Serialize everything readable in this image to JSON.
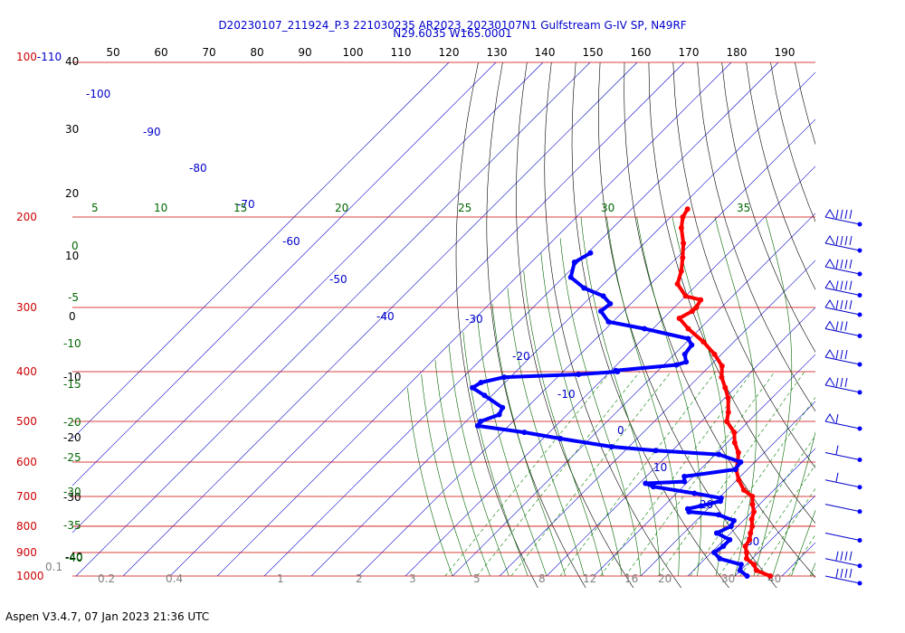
{
  "title_line1": "D20230107_211924_P.3 221030235 AR2023_20230107N1 Gulfstream G-IV SP, N49RF",
  "title_line2": "N29.6035 W165.0001",
  "footer": "Aspen V3.4.7, 07 Jan 2023  21:36 UTC",
  "colors": {
    "temperature": "#ff0000",
    "dewpoint": "#0000ff",
    "isobar": "#cc0000",
    "isotherm": "#0000cc",
    "dry_adiabat": "#000000",
    "moist_adiabat": "#006600",
    "mixing_ratio": "#008000",
    "height_tick": "#000000"
  },
  "chart_data": {
    "type": "line",
    "diagram": "skew-T log-p",
    "title": "D20230107_211924_P.3 221030235 AR2023_20230107N1 Gulfstream G-IV SP, N49RF",
    "subtitle": "N29.6035 W165.0001",
    "ylim_hPa": [
      1000,
      100
    ],
    "pressure_labels": [
      "100-110",
      "200",
      "300",
      "400",
      "500",
      "600",
      "700",
      "800",
      "900",
      "1000"
    ],
    "isobars_hPa": [
      100,
      200,
      300,
      400,
      500,
      600,
      700,
      800,
      900,
      1000
    ],
    "top_tick_labels": [
      "50",
      "60",
      "70",
      "80",
      "90",
      "100",
      "110",
      "120",
      "130",
      "140",
      "150",
      "160",
      "170",
      "180",
      "190"
    ],
    "height_labels": [
      "40",
      "30",
      "20",
      "10",
      "0",
      "-10",
      "-20",
      "-30",
      "-40"
    ],
    "isotherm_labels_C": [
      "-100",
      "-90",
      "-80",
      "-70",
      "-60",
      "-50",
      "-40",
      "-30",
      "-20",
      "-10",
      "0",
      "10",
      "20",
      "30"
    ],
    "moist_adiabat_labels": [
      "5",
      "10",
      "15",
      "20",
      "25",
      "30",
      "35"
    ],
    "left_green_labels": [
      "0",
      "-5",
      "-10",
      "-15",
      "-20",
      "-25",
      "-30",
      "-35",
      "-40"
    ],
    "mixing_ratio_labels": [
      "0.1",
      "0.2",
      "0.4",
      "1",
      "2",
      "3",
      "5",
      "8",
      "12",
      "16",
      "20",
      "30",
      "40"
    ],
    "mixing_ratio_values_gkg": [
      0.1,
      0.2,
      0.4,
      1,
      2,
      3,
      5,
      8,
      12,
      16,
      20,
      30,
      40
    ],
    "series": [
      {
        "name": "temperature",
        "points": [
          {
            "p": 1000,
            "t": 27.5
          },
          {
            "p": 975,
            "t": 23.4
          },
          {
            "p": 950,
            "t": 21.6
          },
          {
            "p": 925,
            "t": 18.8
          },
          {
            "p": 900,
            "t": 17.5
          },
          {
            "p": 875,
            "t": 15.9
          },
          {
            "p": 850,
            "t": 15.4
          },
          {
            "p": 825,
            "t": 14.2
          },
          {
            "p": 800,
            "t": 13.1
          },
          {
            "p": 775,
            "t": 11.5
          },
          {
            "p": 750,
            "t": 10.4
          },
          {
            "p": 725,
            "t": 8.5
          },
          {
            "p": 700,
            "t": 6.8
          },
          {
            "p": 680,
            "t": 3.6
          },
          {
            "p": 650,
            "t": 0.4
          },
          {
            "p": 620,
            "t": -2.4
          },
          {
            "p": 600,
            "t": -3.6
          },
          {
            "p": 575,
            "t": -5.5
          },
          {
            "p": 550,
            "t": -8.4
          },
          {
            "p": 525,
            "t": -10.7
          },
          {
            "p": 500,
            "t": -14.6
          },
          {
            "p": 480,
            "t": -16.2
          },
          {
            "p": 450,
            "t": -19.3
          },
          {
            "p": 430,
            "t": -22.1
          },
          {
            "p": 410,
            "t": -25.1
          },
          {
            "p": 390,
            "t": -27.4
          },
          {
            "p": 370,
            "t": -31.5
          },
          {
            "p": 350,
            "t": -36.5
          },
          {
            "p": 330,
            "t": -42.5
          },
          {
            "p": 315,
            "t": -46.6
          },
          {
            "p": 305,
            "t": -45.4
          },
          {
            "p": 300,
            "t": -45.3
          },
          {
            "p": 290,
            "t": -46.0
          },
          {
            "p": 285,
            "t": -50.0
          },
          {
            "p": 270,
            "t": -54.3
          },
          {
            "p": 255,
            "t": -56.2
          },
          {
            "p": 240,
            "t": -58.8
          },
          {
            "p": 225,
            "t": -61.7
          },
          {
            "p": 210,
            "t": -65.4
          },
          {
            "p": 200,
            "t": -67.4
          },
          {
            "p": 193,
            "t": -68.1
          }
        ]
      },
      {
        "name": "dewpoint",
        "points": [
          {
            "p": 1000,
            "t": 22.6
          },
          {
            "p": 975,
            "t": 19.9
          },
          {
            "p": 950,
            "t": 18.9
          },
          {
            "p": 925,
            "t": 13.1
          },
          {
            "p": 900,
            "t": 10.6
          },
          {
            "p": 875,
            "t": 11.2
          },
          {
            "p": 850,
            "t": 11.2
          },
          {
            "p": 825,
            "t": 7.0
          },
          {
            "p": 800,
            "t": 8.6
          },
          {
            "p": 780,
            "t": 8.0
          },
          {
            "p": 760,
            "t": 3.5
          },
          {
            "p": 750,
            "t": -3.4
          },
          {
            "p": 740,
            "t": -4.3
          },
          {
            "p": 730,
            "t": -2.1
          },
          {
            "p": 715,
            "t": 1.0
          },
          {
            "p": 705,
            "t": 0.5
          },
          {
            "p": 690,
            "t": -6.2
          },
          {
            "p": 670,
            "t": -16.3
          },
          {
            "p": 660,
            "t": -18.7
          },
          {
            "p": 655,
            "t": -10.8
          },
          {
            "p": 640,
            "t": -11.9
          },
          {
            "p": 620,
            "t": -2.6
          },
          {
            "p": 600,
            "t": -3.0
          },
          {
            "p": 580,
            "t": -9.2
          },
          {
            "p": 570,
            "t": -23.5
          },
          {
            "p": 560,
            "t": -33.7
          },
          {
            "p": 540,
            "t": -46.3
          },
          {
            "p": 525,
            "t": -55.3
          },
          {
            "p": 510,
            "t": -66.6
          },
          {
            "p": 500,
            "t": -66.9
          },
          {
            "p": 485,
            "t": -64.4
          },
          {
            "p": 470,
            "t": -65.2
          },
          {
            "p": 445,
            "t": -71.6
          },
          {
            "p": 430,
            "t": -75.8
          },
          {
            "p": 420,
            "t": -75.1
          },
          {
            "p": 410,
            "t": -71.3
          },
          {
            "p": 405,
            "t": -56.1
          },
          {
            "p": 400,
            "t": -48.4
          },
          {
            "p": 398,
            "t": -49.0
          },
          {
            "p": 388,
            "t": -37.3
          },
          {
            "p": 383,
            "t": -35.9
          },
          {
            "p": 370,
            "t": -37.8
          },
          {
            "p": 355,
            "t": -38.3
          },
          {
            "p": 345,
            "t": -40.4
          },
          {
            "p": 330,
            "t": -51.8
          },
          {
            "p": 320,
            "t": -60.9
          },
          {
            "p": 305,
            "t": -64.8
          },
          {
            "p": 295,
            "t": -64.4
          },
          {
            "p": 285,
            "t": -67.5
          },
          {
            "p": 275,
            "t": -73.3
          },
          {
            "p": 262,
            "t": -78.4
          },
          {
            "p": 245,
            "t": -80.8
          },
          {
            "p": 235,
            "t": -79.4
          }
        ]
      }
    ],
    "wind_barbs_hPa": [
      200,
      225,
      250,
      275,
      300,
      330,
      375,
      425,
      500,
      575,
      650,
      725,
      825,
      925,
      1000
    ]
  }
}
